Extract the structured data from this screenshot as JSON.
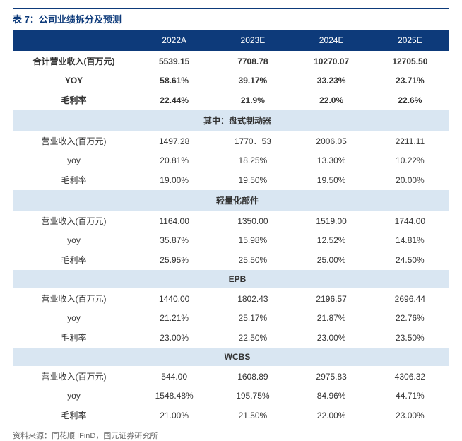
{
  "title": "表 7：公司业绩拆分及预测",
  "columns": [
    "",
    "2022A",
    "2023E",
    "2024E",
    "2025E"
  ],
  "summary": {
    "revenue": {
      "label": "合计营业收入(百万元)",
      "v": [
        "5539.15",
        "7708.78",
        "10270.07",
        "12705.50"
      ]
    },
    "yoy": {
      "label": "YOY",
      "v": [
        "58.61%",
        "39.17%",
        "33.23%",
        "23.71%"
      ]
    },
    "gross": {
      "label": "毛利率",
      "v": [
        "22.44%",
        "21.9%",
        "22.0%",
        "22.6%"
      ]
    }
  },
  "sections": [
    {
      "header": "其中：盘式制动器",
      "rows": [
        {
          "label": "营业收入(百万元)",
          "v": [
            "1497.28",
            "1770．53",
            "2006.05",
            "2211.11"
          ]
        },
        {
          "label": "yoy",
          "v": [
            "20.81%",
            "18.25%",
            "13.30%",
            "10.22%"
          ]
        },
        {
          "label": "毛利率",
          "v": [
            "19.00%",
            "19.50%",
            "19.50%",
            "20.00%"
          ]
        }
      ]
    },
    {
      "header": "轻量化部件",
      "rows": [
        {
          "label": "营业收入(百万元)",
          "v": [
            "1164.00",
            "1350.00",
            "1519.00",
            "1744.00"
          ]
        },
        {
          "label": "yoy",
          "v": [
            "35.87%",
            "15.98%",
            "12.52%",
            "14.81%"
          ]
        },
        {
          "label": "毛利率",
          "v": [
            "25.95%",
            "25.50%",
            "25.00%",
            "24.50%"
          ]
        }
      ]
    },
    {
      "header": "EPB",
      "rows": [
        {
          "label": "营业收入(百万元)",
          "v": [
            "1440.00",
            "1802.43",
            "2196.57",
            "2696.44"
          ]
        },
        {
          "label": "yoy",
          "v": [
            "21.21%",
            "25.17%",
            "21.87%",
            "22.76%"
          ]
        },
        {
          "label": "毛利率",
          "v": [
            "23.00%",
            "22.50%",
            "23.00%",
            "23.50%"
          ]
        }
      ]
    },
    {
      "header": "WCBS",
      "rows": [
        {
          "label": "营业收入(百万元)",
          "v": [
            "544.00",
            "1608.89",
            "2975.83",
            "4306.32"
          ]
        },
        {
          "label": "yoy",
          "v": [
            "1548.48%",
            "195.75%",
            "84.96%",
            "44.71%"
          ]
        },
        {
          "label": "毛利率",
          "v": [
            "21.00%",
            "21.50%",
            "22.00%",
            "23.00%"
          ]
        }
      ]
    }
  ],
  "source": "资料来源：同花顺 IFinD，国元证券研究所",
  "colors": {
    "header_bg": "#0d3a7a",
    "header_text": "#ffffff",
    "section_bg": "#d9e6f2",
    "text": "#333333",
    "source_text": "#666666",
    "title_color": "#0d3a7a"
  }
}
